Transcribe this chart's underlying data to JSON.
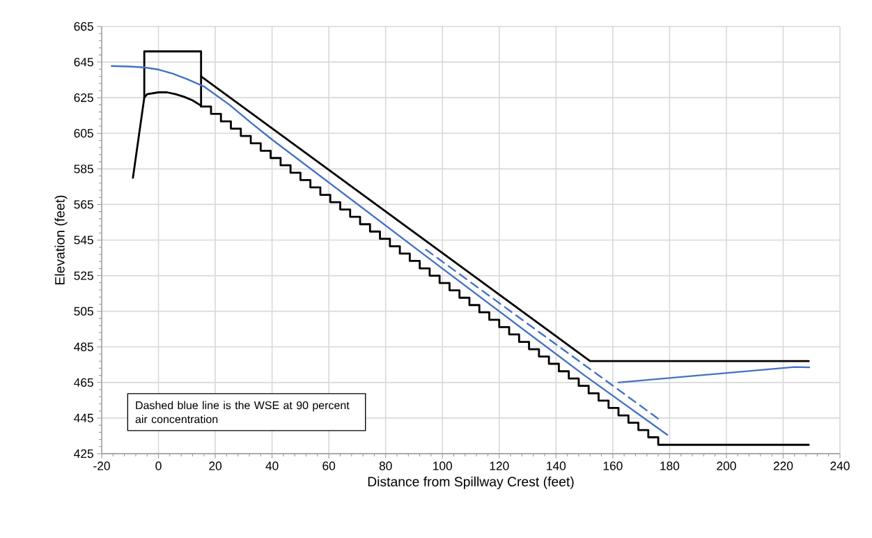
{
  "chart_data": {
    "type": "line",
    "xlabel": "Distance from Spillway Crest (feet)",
    "ylabel": "Elevation (feet)",
    "xlim": [
      -20,
      240
    ],
    "ylim": [
      425,
      665
    ],
    "xticks": [
      -20,
      0,
      20,
      40,
      60,
      80,
      100,
      120,
      140,
      160,
      180,
      200,
      220,
      240
    ],
    "yticks": [
      425,
      445,
      465,
      485,
      505,
      525,
      545,
      565,
      585,
      605,
      625,
      645,
      665
    ],
    "grid": true,
    "marker": "none",
    "annotations": [
      "Dashed blue line is the WSE at 90 percent air concentration"
    ],
    "series": [
      {
        "type": "line",
        "color": "#000000",
        "x": [
          -9,
          -5,
          -4,
          0,
          3,
          6,
          9,
          12,
          15
        ],
        "values": [
          580,
          625,
          627,
          628,
          628,
          627,
          625.5,
          623.5,
          620.5
        ]
      },
      {
        "type": "step",
        "color": "#000000",
        "x": [
          15,
          18.5,
          22,
          25.5,
          29,
          32.5,
          36,
          39.5,
          43,
          46.5,
          50,
          53.5,
          57,
          60.5,
          64,
          67.5,
          71,
          74.5,
          78,
          81.5,
          85,
          88.5,
          92,
          95.5,
          99,
          102.5,
          106,
          109.5,
          113,
          116.5,
          120,
          123.5,
          127,
          130.5,
          134,
          137.5,
          141,
          144.5,
          148,
          151.5,
          155,
          158.5,
          162,
          165.5,
          169,
          172.5,
          176,
          229
        ],
        "values": [
          620,
          615.9,
          611.7,
          607.6,
          603.5,
          599.4,
          595.2,
          591.1,
          587.0,
          582.8,
          578.7,
          574.6,
          570.4,
          566.3,
          562.2,
          558.1,
          553.9,
          549.8,
          545.7,
          541.5,
          537.4,
          533.3,
          529.1,
          525.0,
          520.9,
          516.8,
          512.6,
          508.5,
          504.4,
          500.2,
          496.1,
          492.0,
          487.8,
          483.7,
          479.6,
          475.5,
          471.3,
          467.2,
          463.1,
          458.9,
          454.8,
          450.7,
          446.5,
          442.4,
          438.3,
          434.2,
          430,
          430
        ]
      },
      {
        "type": "line",
        "color": "#000000",
        "x": [
          -5,
          -5,
          15,
          15
        ],
        "values": [
          625,
          651,
          651,
          620
        ]
      },
      {
        "type": "line",
        "color": "#000000",
        "x": [
          15,
          152,
          229
        ],
        "values": [
          637,
          477,
          477
        ]
      },
      {
        "type": "line",
        "color": "#4472c4",
        "x": [
          -16.5,
          -10,
          -5,
          0,
          5,
          10,
          16,
          25,
          32.5,
          40,
          100,
          150,
          179.2
        ],
        "values": [
          642.8,
          642.5,
          642,
          640.8,
          638.5,
          635.5,
          631.3,
          621,
          611,
          601.5,
          529,
          469,
          435.6
        ]
      },
      {
        "type": "line",
        "color": "#4472c4",
        "x": [
          162,
          224,
          229.2
        ],
        "values": [
          465,
          473.7,
          473.5
        ]
      },
      {
        "type": "line",
        "color": "#4472c4",
        "line_style": "dashed",
        "x": [
          94.2,
          176.8
        ],
        "values": [
          539.6,
          443.7
        ]
      }
    ]
  }
}
